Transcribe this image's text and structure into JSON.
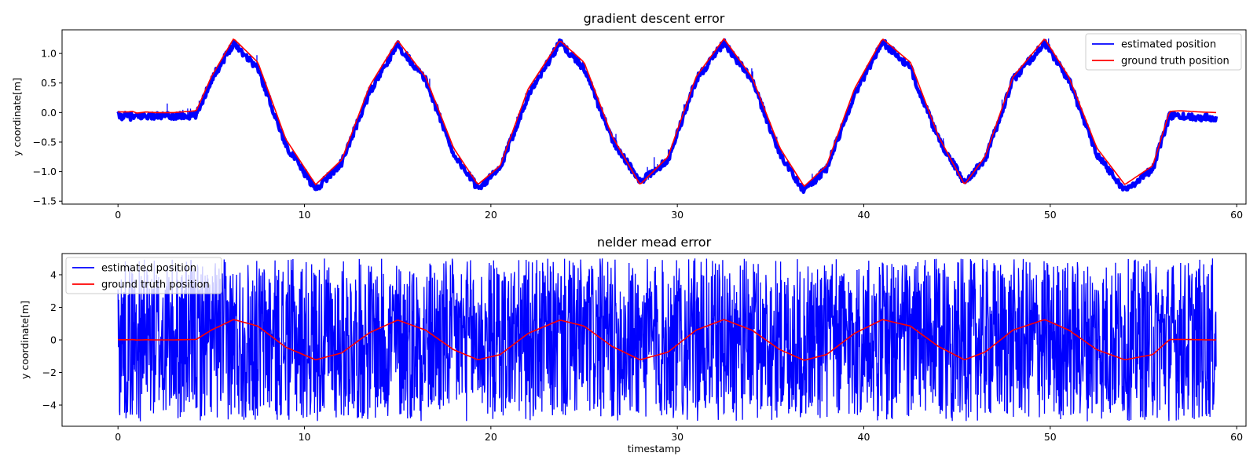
{
  "chart_data": [
    {
      "type": "line",
      "title": "gradient descent error",
      "xlabel": "",
      "ylabel": "y coordinate[m]",
      "xlim": [
        -3,
        60.5
      ],
      "ylim": [
        -1.55,
        1.4
      ],
      "xticks": [
        0,
        10,
        20,
        30,
        40,
        50,
        60
      ],
      "xtick_labels": [
        "0",
        "10",
        "20",
        "30",
        "40",
        "50",
        "60"
      ],
      "yticks": [
        -1.5,
        -1.0,
        -0.5,
        0.0,
        0.5,
        1.0
      ],
      "ytick_labels": [
        "−1.5",
        "−1.0",
        "−0.5",
        "0.0",
        "0.5",
        "1.0"
      ],
      "legend": "top-right",
      "series": [
        {
          "name": "estimated position",
          "color": "#0000ff",
          "x": [
            0,
            0.5,
            1,
            1.5,
            2,
            3,
            4,
            4.2,
            5,
            6.2,
            7.5,
            9,
            10.6,
            12,
            13.5,
            15,
            16.5,
            18,
            19.3,
            20.5,
            22,
            23.7,
            25,
            26.5,
            28,
            29.5,
            31,
            32.5,
            34,
            35.5,
            36.8,
            38,
            39.5,
            41,
            42.5,
            44,
            45.4,
            46.5,
            48,
            49.7,
            51,
            52.5,
            54,
            55.5,
            56.4,
            57,
            58,
            58.9
          ],
          "y": [
            -0.06,
            -0.06,
            -0.08,
            -0.05,
            -0.06,
            -0.06,
            -0.06,
            -0.05,
            0.55,
            1.18,
            0.75,
            -0.55,
            -1.3,
            -0.85,
            0.35,
            1.15,
            0.55,
            -0.7,
            -1.28,
            -0.95,
            0.3,
            1.18,
            0.75,
            -0.45,
            -1.18,
            -0.8,
            0.55,
            1.18,
            0.55,
            -0.7,
            -1.33,
            -0.95,
            0.3,
            1.2,
            0.75,
            -0.45,
            -1.18,
            -0.8,
            0.55,
            1.18,
            0.55,
            -0.7,
            -1.32,
            -0.95,
            -0.05,
            -0.07,
            -0.08,
            -0.08
          ]
        },
        {
          "name": "ground truth position",
          "color": "#ff0000",
          "x": [
            0,
            0.5,
            0.8,
            1,
            1.5,
            2,
            3,
            4.2,
            5,
            6.2,
            7.5,
            9,
            10.6,
            12,
            13.5,
            15,
            16.5,
            18,
            19.3,
            20.5,
            22,
            23.7,
            25,
            26.5,
            28,
            29.5,
            31,
            32.5,
            34,
            35.5,
            36.8,
            38,
            39.5,
            41,
            42.5,
            44,
            45.4,
            46.5,
            48,
            49.7,
            51,
            52.5,
            54,
            55.5,
            56.4,
            57,
            58,
            58.9
          ],
          "y": [
            0.01,
            0.01,
            0.02,
            -0.01,
            0.01,
            0.0,
            0.0,
            0.03,
            0.6,
            1.25,
            0.85,
            -0.45,
            -1.22,
            -0.8,
            0.45,
            1.22,
            0.6,
            -0.6,
            -1.22,
            -0.9,
            0.4,
            1.22,
            0.85,
            -0.4,
            -1.22,
            -0.75,
            0.6,
            1.25,
            0.6,
            -0.6,
            -1.25,
            -0.9,
            0.4,
            1.25,
            0.85,
            -0.4,
            -1.22,
            -0.75,
            0.6,
            1.25,
            0.6,
            -0.6,
            -1.22,
            -0.9,
            0.02,
            0.03,
            0.01,
            0.0
          ]
        }
      ]
    },
    {
      "type": "line",
      "title": "nelder mead error",
      "xlabel": "timestamp",
      "ylabel": "y coordinate[m]",
      "xlim": [
        -3,
        60.5
      ],
      "ylim": [
        -5.3,
        5.3
      ],
      "xticks": [
        0,
        10,
        20,
        30,
        40,
        50,
        60
      ],
      "xtick_labels": [
        "0",
        "10",
        "20",
        "30",
        "40",
        "50",
        "60"
      ],
      "yticks": [
        -4,
        -2,
        0,
        2,
        4
      ],
      "ytick_labels": [
        "−4",
        "−2",
        "0",
        "2",
        "4"
      ],
      "legend": "top-left",
      "series": [
        {
          "name": "estimated position",
          "color": "#0000ff",
          "noise_range": [
            -5.0,
            5.0
          ],
          "x_range": [
            0,
            58.9
          ]
        },
        {
          "name": "ground truth position",
          "color": "#ff0000",
          "x": [
            0,
            0.5,
            0.8,
            1,
            1.5,
            2,
            3,
            4.2,
            5,
            6.2,
            7.5,
            9,
            10.6,
            12,
            13.5,
            15,
            16.5,
            18,
            19.3,
            20.5,
            22,
            23.7,
            25,
            26.5,
            28,
            29.5,
            31,
            32.5,
            34,
            35.5,
            36.8,
            38,
            39.5,
            41,
            42.5,
            44,
            45.4,
            46.5,
            48,
            49.7,
            51,
            52.5,
            54,
            55.5,
            56.4,
            57,
            58,
            58.9
          ],
          "y": [
            0.01,
            0.01,
            0.02,
            -0.01,
            0.01,
            0.0,
            0.0,
            0.03,
            0.6,
            1.25,
            0.85,
            -0.45,
            -1.22,
            -0.8,
            0.45,
            1.22,
            0.6,
            -0.6,
            -1.22,
            -0.9,
            0.4,
            1.22,
            0.85,
            -0.4,
            -1.22,
            -0.75,
            0.6,
            1.25,
            0.6,
            -0.6,
            -1.25,
            -0.9,
            0.4,
            1.25,
            0.85,
            -0.4,
            -1.22,
            -0.75,
            0.6,
            1.25,
            0.6,
            -0.6,
            -1.22,
            -0.9,
            0.02,
            0.03,
            0.01,
            0.0
          ]
        }
      ]
    }
  ]
}
